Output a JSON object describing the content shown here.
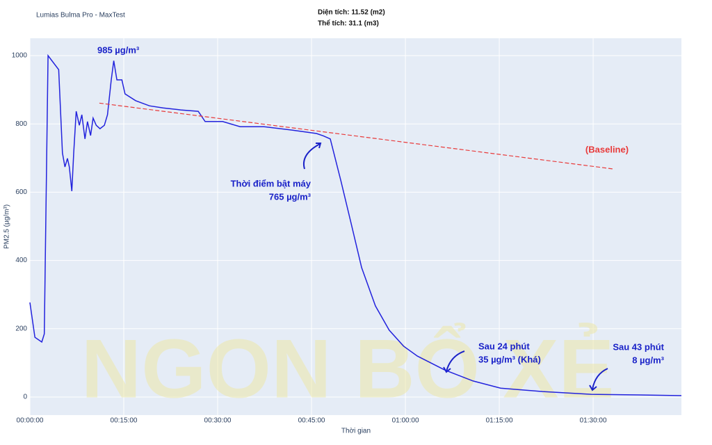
{
  "chart_data": {
    "type": "line",
    "title": "Lumias Bulma Pro - MaxTest",
    "subtitle": [
      "Diện tích: 11.52 (m2)",
      "Thể tích: 31.1 (m3)"
    ],
    "x_label": "Thời gian",
    "y_label": "PM2.5 (µg/m³)",
    "watermark": "NGON BỔ XẺ",
    "grid": true,
    "x": [
      0,
      0.8,
      1.9,
      2.3,
      2.9,
      4.6,
      5.2,
      5.6,
      6.0,
      6.3,
      6.7,
      7.0,
      7.4,
      7.9,
      8.3,
      8.8,
      9.2,
      9.7,
      10.1,
      10.6,
      11.2,
      11.9,
      12.4,
      13.0,
      13.4,
      13.9,
      14.7,
      15.2,
      16.9,
      19.1,
      21.3,
      24.1,
      26.9,
      28.0,
      30.8,
      33.6,
      37.4,
      41.9,
      45.8,
      46.9,
      48.0,
      49.7,
      51.3,
      53.0,
      55.2,
      57.4,
      59.7,
      61.9,
      66.3,
      70.8,
      75.2,
      81.9,
      89.7,
      97.4,
      104.1
    ],
    "series": [
      {
        "name": "PM2.5",
        "color": "#2222dd",
        "values": [
          277,
          175,
          161,
          185,
          1000,
          959,
          715,
          674,
          699,
          674,
          603,
          715,
          837,
          796,
          827,
          756,
          807,
          766,
          817,
          796,
          786,
          796,
          827,
          929,
          985,
          929,
          929,
          888,
          868,
          853,
          847,
          841,
          837,
          807,
          807,
          792,
          792,
          782,
          772,
          765,
          756,
          633,
          511,
          379,
          267,
          196,
          149,
          120,
          79,
          47,
          26,
          16,
          8,
          6,
          4
        ]
      },
      {
        "name": "(Baseline)",
        "color": "#e83a3a",
        "dashed": true,
        "x": [
          11.1,
          93.2
        ],
        "values": [
          861,
          668
        ]
      }
    ],
    "annotations": [
      [
        "985 µg/m³"
      ],
      [
        "Thời điểm bật máy",
        "765 µg/m³"
      ],
      [
        "Sau 24 phút",
        "35 µg/m³ (Khá)"
      ],
      [
        "Sau 43 phút",
        "8 µg/m³"
      ]
    ],
    "xlim": [
      0,
      104.1
    ],
    "xticks": [
      {
        "value": 0,
        "label": "00:00:00"
      },
      {
        "value": 15,
        "label": "00:15:00"
      },
      {
        "value": 30,
        "label": "00:30:00"
      },
      {
        "value": 45,
        "label": "00:45:00"
      },
      {
        "value": 60,
        "label": "01:00:00"
      },
      {
        "value": 75,
        "label": "01:15:00"
      },
      {
        "value": 90,
        "label": "01:30:00"
      }
    ],
    "ylim": [
      -53,
      1051
    ],
    "yticks": [
      0,
      200,
      400,
      600,
      800,
      1000
    ]
  }
}
